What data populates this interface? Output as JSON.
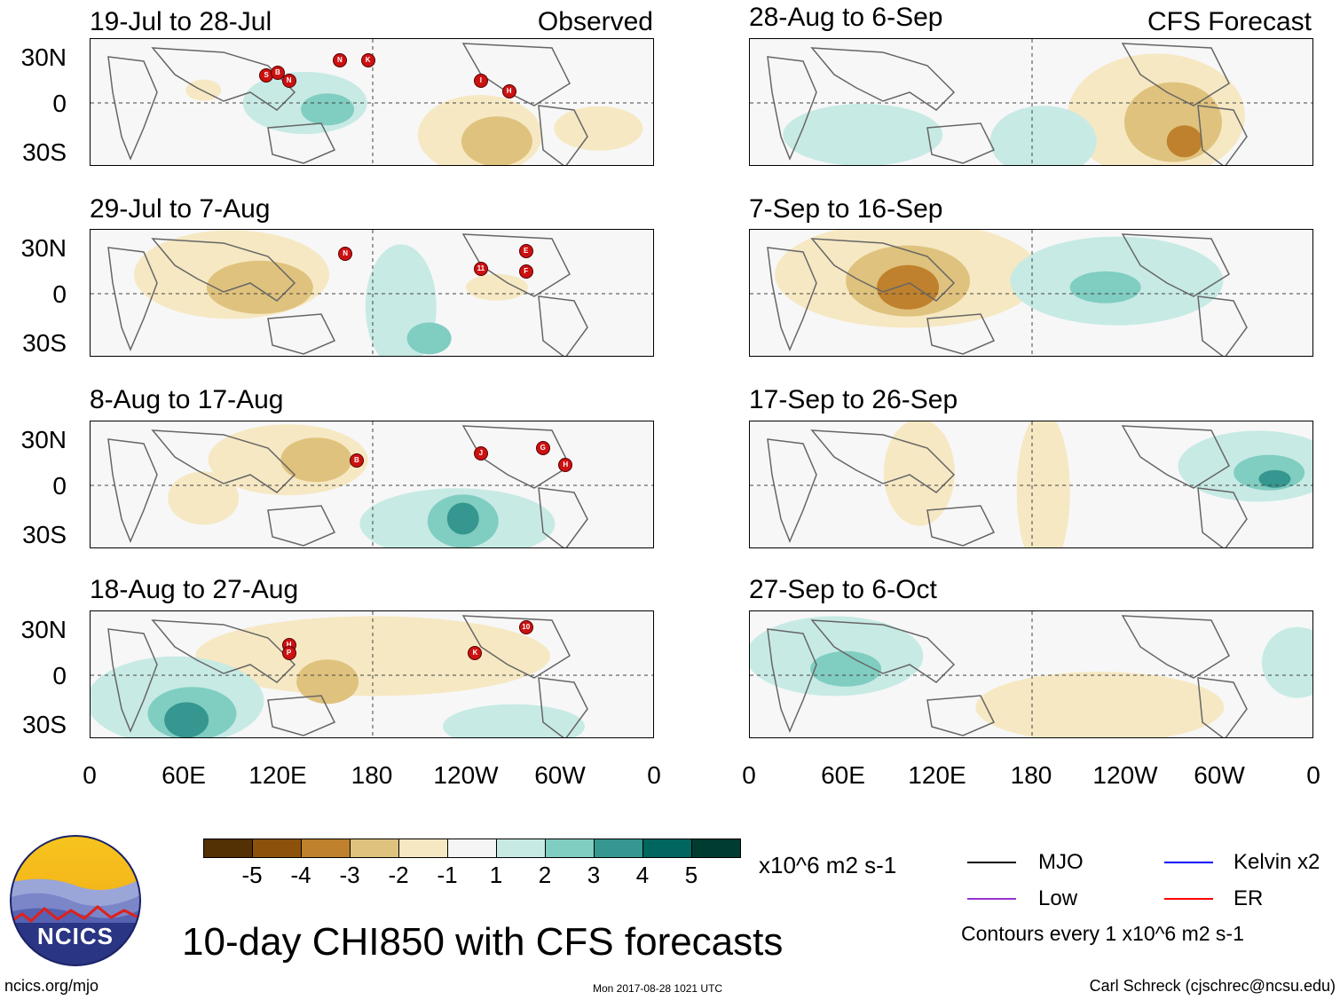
{
  "headers": {
    "observed": "Observed",
    "forecast": "CFS Forecast"
  },
  "panels_left": [
    {
      "title": "19-Jul to 28-Jul",
      "storms": [
        "S",
        "B",
        "N",
        "N",
        "K",
        "I",
        "H"
      ]
    },
    {
      "title": "29-Jul to 7-Aug",
      "storms": [
        "N",
        "E",
        "11",
        "F"
      ]
    },
    {
      "title": "8-Aug to 17-Aug",
      "storms": [
        "B",
        "J",
        "G",
        "H"
      ]
    },
    {
      "title": "18-Aug to 27-Aug",
      "storms": [
        "H",
        "P",
        "K",
        "10"
      ]
    }
  ],
  "panels_right": [
    {
      "title": "28-Aug to 6-Sep"
    },
    {
      "title": "7-Sep to 16-Sep"
    },
    {
      "title": "17-Sep to 26-Sep"
    },
    {
      "title": "27-Sep to 6-Oct"
    }
  ],
  "y_axis": [
    "30N",
    "0",
    "30S"
  ],
  "x_axis": [
    "0",
    "60E",
    "120E",
    "180",
    "120W",
    "60W",
    "0"
  ],
  "colorbar": {
    "colors": [
      "#543005",
      "#8c510a",
      "#bf812d",
      "#dfc27d",
      "#f6e8c3",
      "#f5f5f5",
      "#c7eae5",
      "#80cdc1",
      "#35978f",
      "#01665e",
      "#003c30"
    ],
    "labels": [
      "-5",
      "-4",
      "-3",
      "-2",
      "-1",
      "1",
      "2",
      "3",
      "4",
      "5"
    ],
    "units": "x10^6 m2 s-1"
  },
  "legend": {
    "items": [
      {
        "label": "MJO",
        "color": "#000000"
      },
      {
        "label": "Kelvin x2",
        "color": "#0000ff"
      },
      {
        "label": "Low",
        "color": "#9933cc"
      },
      {
        "label": "ER",
        "color": "#ff0000"
      }
    ],
    "note": "Contours every 1 x10^6 m2 s-1"
  },
  "logo_text": "NCICS",
  "main_title": "10-day CHI850 with CFS forecasts",
  "footer": {
    "url": "ncics.org/mjo",
    "timestamp": "Mon 2017-08-28 1021 UTC",
    "author": "Carl Schreck (cjschrec@ncsu.edu)"
  }
}
